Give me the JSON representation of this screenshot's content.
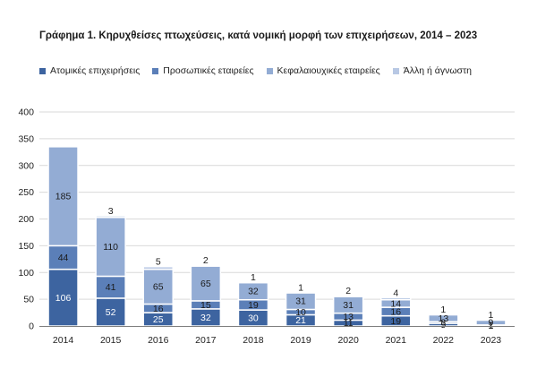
{
  "chart_data": {
    "type": "bar",
    "stacked": true,
    "title": "Γράφημα 1. Κηρυχθείσες πτωχεύσεις, κατά νομική μορφή των επιχειρήσεων, 2014 – 2023",
    "xlabel": "",
    "ylabel": "",
    "ylim": [
      0,
      400
    ],
    "yticks": [
      0,
      50,
      100,
      150,
      200,
      250,
      300,
      350,
      400
    ],
    "grid": true,
    "legend_position": "top",
    "categories": [
      "2014",
      "2015",
      "2016",
      "2017",
      "2018",
      "2019",
      "2020",
      "2021",
      "2022",
      "2023"
    ],
    "series": [
      {
        "name": "Ατομικές επιχειρήσεις",
        "color": "#3d64a0",
        "values": [
          106,
          52,
          25,
          32,
          30,
          21,
          11,
          19,
          5,
          1
        ]
      },
      {
        "name": "Προσωπικές εταιρείες",
        "color": "#5b7fb8",
        "values": [
          44,
          41,
          16,
          15,
          19,
          10,
          13,
          16,
          3,
          1
        ]
      },
      {
        "name": "Κεφαλαιουχικές εταιρείες",
        "color": "#93acd4",
        "values": [
          185,
          110,
          65,
          65,
          32,
          31,
          31,
          14,
          13,
          9
        ]
      },
      {
        "name": "Άλλη ή άγνωστη",
        "color": "#b8c8e4",
        "values": [
          0,
          3,
          5,
          2,
          1,
          1,
          2,
          4,
          1,
          1
        ]
      }
    ],
    "data_labels": [
      [
        "106",
        "52",
        "25",
        "32",
        "30",
        "21",
        "11",
        "19",
        "5",
        "1"
      ],
      [
        "44",
        "41",
        "16",
        "15",
        "19",
        "10",
        "13",
        "16",
        "3",
        "1"
      ],
      [
        "185",
        "110",
        "65",
        "65",
        "32",
        "31",
        "31",
        "14",
        "13",
        "9"
      ],
      [
        "",
        "3",
        "5",
        "2",
        "1",
        "1",
        "2",
        "4",
        "1",
        "1"
      ]
    ]
  }
}
